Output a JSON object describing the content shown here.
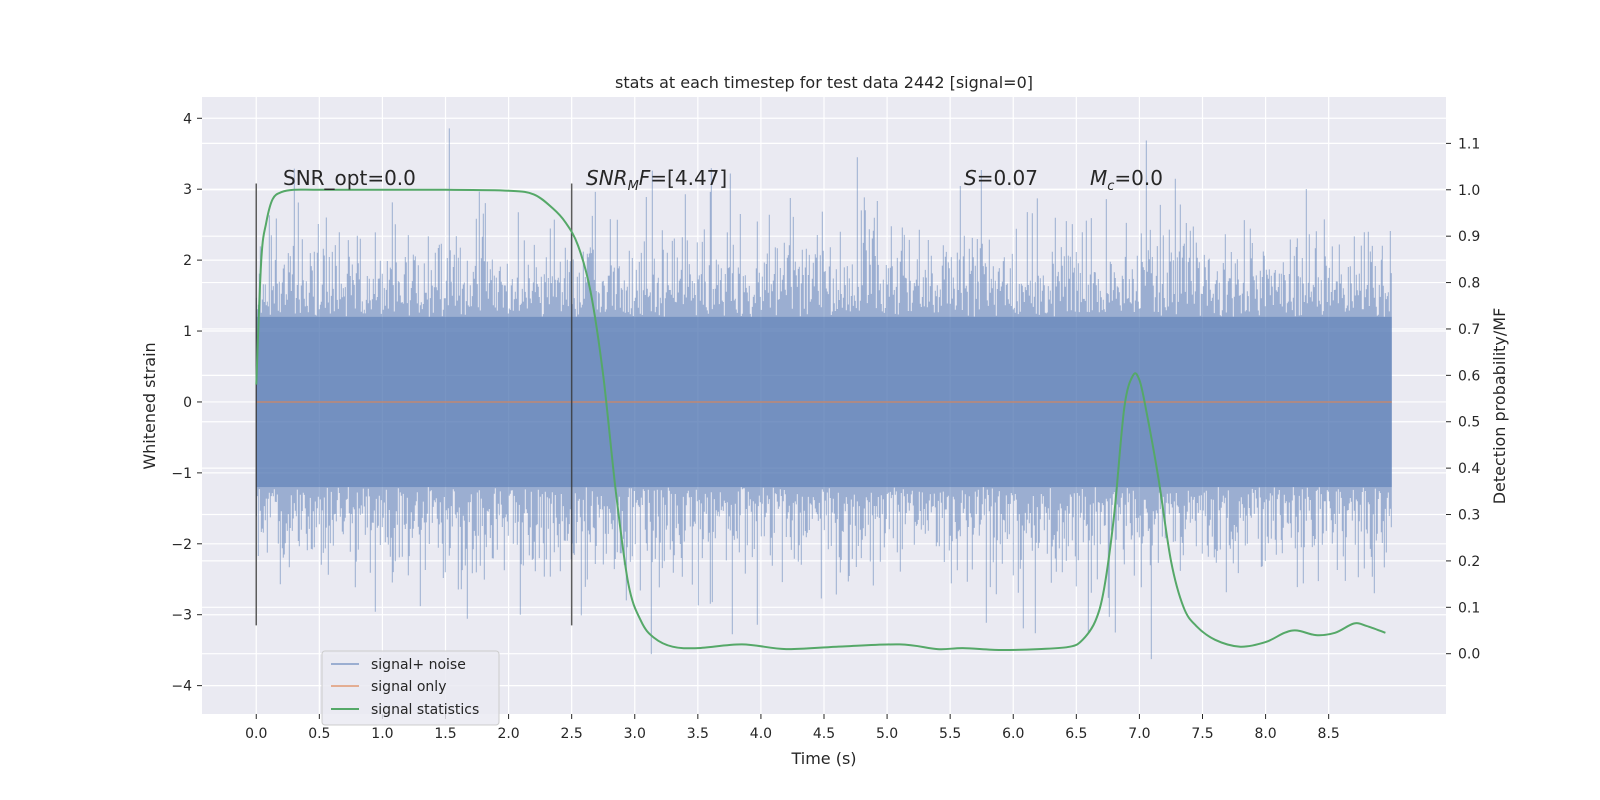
{
  "chart_data": {
    "type": "line",
    "title": "stats at each timestep for test data 2442 [signal=0]",
    "xlabel": "Time (s)",
    "ylabel": "Whitened strain",
    "y2label": "Detection probability/MF",
    "xlim": [
      -0.43,
      9.43
    ],
    "ylim": [
      -4.4,
      4.3
    ],
    "y2lim": [
      -0.13,
      1.2
    ],
    "xticks": [
      0.0,
      0.5,
      1.0,
      1.5,
      2.0,
      2.5,
      3.0,
      3.5,
      4.0,
      4.5,
      5.0,
      5.5,
      6.0,
      6.5,
      7.0,
      7.5,
      8.0,
      8.5
    ],
    "xtick_labels": [
      "0.0",
      "0.5",
      "1.0",
      "1.5",
      "2.0",
      "2.5",
      "3.0",
      "3.5",
      "4.0",
      "4.5",
      "5.0",
      "5.5",
      "6.0",
      "6.5",
      "7.0",
      "7.5",
      "8.0",
      "8.5"
    ],
    "yticks": [
      -4,
      -3,
      -2,
      -1,
      0,
      1,
      2,
      3,
      4
    ],
    "ytick_labels": [
      "−4",
      "−3",
      "−2",
      "−1",
      "0",
      "1",
      "2",
      "3",
      "4"
    ],
    "y2ticks": [
      0.0,
      0.1,
      0.2,
      0.3,
      0.4,
      0.5,
      0.6,
      0.7,
      0.8,
      0.9,
      1.0,
      1.1
    ],
    "y2tick_labels": [
      "0.0",
      "0.1",
      "0.2",
      "0.3",
      "0.4",
      "0.5",
      "0.6",
      "0.7",
      "0.8",
      "0.9",
      "1.0",
      "1.1"
    ],
    "grid": true,
    "legend_position": "lower-left",
    "annotations": {
      "snr_opt": "SNR_opt=0.0",
      "snr_mf_main": "SNR",
      "snr_mf_sub": "M",
      "snr_mf_rest": "F",
      "snr_mf_value": "=[4.47]",
      "s_var": "S",
      "s_value": "=0.07",
      "mc_var": "M",
      "mc_sub": "c",
      "mc_value": "=0.0"
    },
    "vertical_markers_x": [
      0.0,
      2.5
    ],
    "noise": {
      "x_range": [
        0.0,
        9.0
      ],
      "envelope_core": 1.2,
      "approx_min": -4.0,
      "approx_max": 3.9
    },
    "series": [
      {
        "name": "signal+ noise",
        "color": "#4c72b0",
        "axis": "left",
        "style": "dense noise trace"
      },
      {
        "name": "signal only",
        "color": "#dd8452",
        "axis": "left",
        "x": [
          0.0,
          9.0
        ],
        "y": [
          0.0,
          0.0
        ]
      },
      {
        "name": "signal statistics",
        "color": "#55a868",
        "axis": "right",
        "x": [
          0.0,
          0.04,
          0.08,
          0.13,
          0.2,
          0.3,
          0.5,
          1.0,
          1.5,
          2.0,
          2.2,
          2.35,
          2.45,
          2.55,
          2.65,
          2.75,
          2.85,
          2.95,
          3.05,
          3.15,
          3.3,
          3.5,
          3.85,
          4.2,
          4.6,
          5.1,
          5.4,
          5.6,
          5.9,
          6.2,
          6.45,
          6.55,
          6.65,
          6.72,
          6.8,
          6.88,
          6.95,
          7.0,
          7.05,
          7.15,
          7.25,
          7.35,
          7.45,
          7.6,
          7.8,
          8.0,
          8.15,
          8.25,
          8.4,
          8.55,
          8.7,
          8.8,
          8.95
        ],
        "y": [
          0.58,
          0.85,
          0.93,
          0.98,
          0.995,
          1.0,
          1.0,
          1.0,
          1.0,
          0.998,
          0.99,
          0.96,
          0.93,
          0.88,
          0.78,
          0.6,
          0.35,
          0.15,
          0.07,
          0.035,
          0.015,
          0.012,
          0.02,
          0.01,
          0.015,
          0.02,
          0.01,
          0.012,
          0.008,
          0.01,
          0.015,
          0.03,
          0.07,
          0.14,
          0.3,
          0.53,
          0.6,
          0.59,
          0.53,
          0.38,
          0.2,
          0.1,
          0.06,
          0.03,
          0.015,
          0.025,
          0.045,
          0.05,
          0.04,
          0.045,
          0.065,
          0.06,
          0.045
        ]
      }
    ],
    "legend": [
      {
        "label": "signal+ noise",
        "color": "#4c72b0"
      },
      {
        "label": "signal only",
        "color": "#dd8452"
      },
      {
        "label": "signal statistics",
        "color": "#55a868"
      }
    ]
  }
}
